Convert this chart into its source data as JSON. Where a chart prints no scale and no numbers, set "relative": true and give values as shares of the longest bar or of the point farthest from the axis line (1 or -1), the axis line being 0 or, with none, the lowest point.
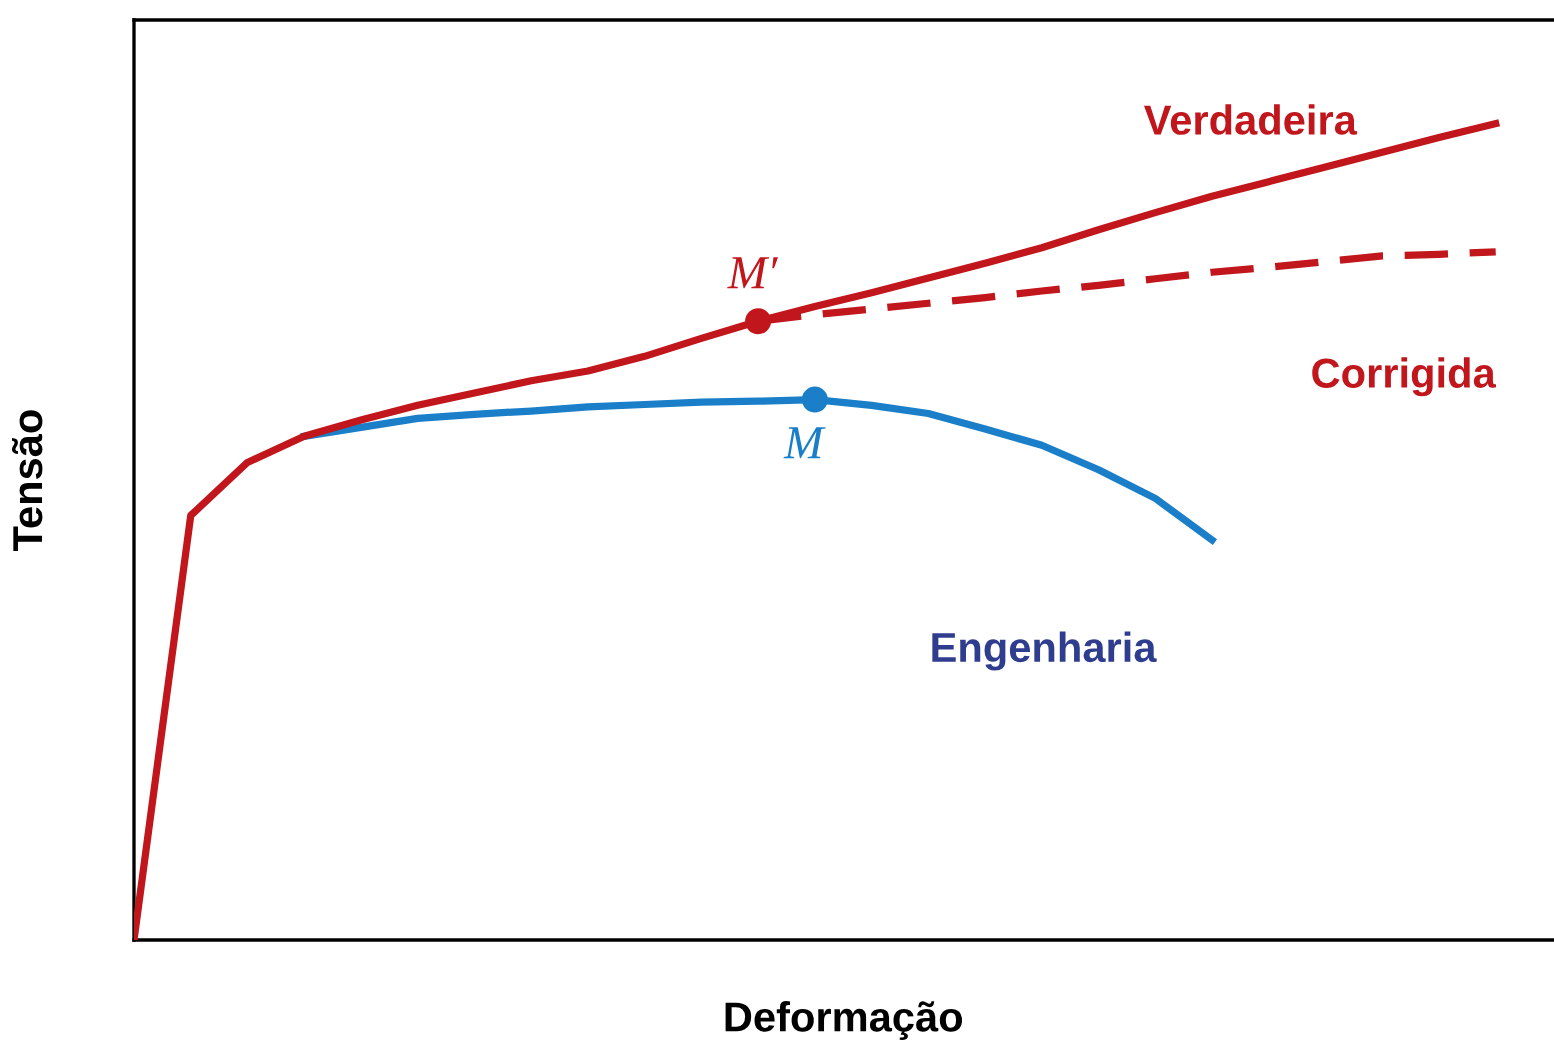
{
  "chart_data": {
    "type": "line",
    "relative": true,
    "xlabel": "Deformação",
    "ylabel": "Tensão",
    "legend": false,
    "categories": [
      null,
      null,
      null,
      null,
      null,
      null,
      null,
      null,
      null,
      null,
      null,
      null,
      null,
      null,
      null,
      null,
      null,
      null,
      null,
      null,
      null,
      null,
      null,
      null,
      null
    ],
    "series": [
      {
        "name": "Engenharia",
        "color": "#1a7fc8",
        "values": [
          null,
          null,
          null,
          0.617,
          0.628,
          0.639,
          0.644,
          0.648,
          0.653,
          0.656,
          0.659,
          0.66,
          0.662,
          0.655,
          0.645,
          0.626,
          0.606,
          0.576,
          0.541,
          0.49,
          null,
          null,
          null,
          null,
          null
        ]
      },
      {
        "name": "Corrigida",
        "color": "#c0161c",
        "line_style": "dashed",
        "values": [
          null,
          null,
          null,
          null,
          null,
          null,
          null,
          null,
          null,
          null,
          null,
          0.758,
          0.766,
          0.773,
          0.78,
          0.787,
          0.795,
          0.802,
          0.81,
          0.818,
          0.824,
          0.831,
          0.838,
          0.84,
          0.843
        ]
      },
      {
        "name": "Verdadeira",
        "color": "#c0161c",
        "values": [
          0,
          0.52,
          0.585,
          0.617,
          0.637,
          0.655,
          0.67,
          0.685,
          0.697,
          0.715,
          0.737,
          0.758,
          0.776,
          0.793,
          0.811,
          0.829,
          0.848,
          0.87,
          0.891,
          0.911,
          0.929,
          0.947,
          0.965,
          0.983,
          1.0
        ]
      }
    ],
    "annotations": [
      {
        "text": "M′",
        "y": 0.758
      },
      {
        "text": "M",
        "y": 0.662
      }
    ]
  }
}
